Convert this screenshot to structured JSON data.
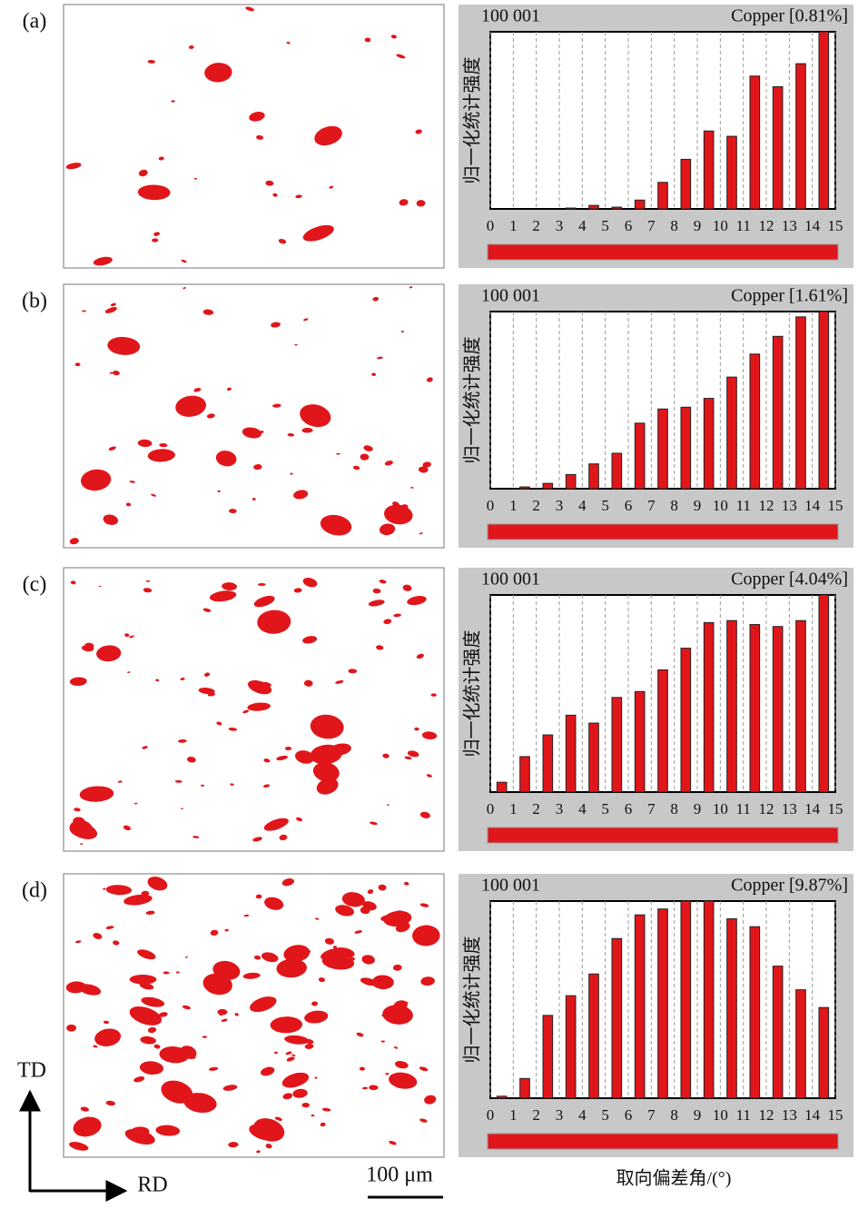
{
  "figure": {
    "panels": [
      "(a)",
      "(b)",
      "(c)",
      "(d)"
    ],
    "td": "TD",
    "rd": "RD",
    "scale_bar": "100 μm",
    "x_label": "取向偏差角/(°)"
  },
  "chart_data": [
    {
      "type": "histogram",
      "subtitle": "100 001",
      "title": "Copper [0.81%]",
      "y_label": "归一化统计强度",
      "bins": [
        0,
        1,
        2,
        3,
        4,
        5,
        6,
        7,
        8,
        9,
        10,
        11,
        12,
        13,
        14,
        15
      ],
      "values": [
        0,
        0,
        0,
        0.005,
        0.02,
        0.01,
        0.05,
        0.15,
        0.28,
        0.44,
        0.41,
        0.75,
        0.69,
        0.82,
        1.0
      ],
      "color": "#e0161b",
      "xlim": [
        0,
        15
      ],
      "ylim": [
        0,
        1
      ],
      "xticks": [
        0,
        1,
        2,
        3,
        4,
        5,
        6,
        7,
        8,
        9,
        10,
        11,
        12,
        13,
        14,
        15
      ],
      "grid": true
    },
    {
      "type": "histogram",
      "subtitle": "100 001",
      "title": "Copper [1.61%]",
      "y_label": "归一化统计强度",
      "bins": [
        0,
        1,
        2,
        3,
        4,
        5,
        6,
        7,
        8,
        9,
        10,
        11,
        12,
        13,
        14,
        15
      ],
      "values": [
        0,
        0.01,
        0.03,
        0.08,
        0.14,
        0.2,
        0.37,
        0.45,
        0.46,
        0.51,
        0.63,
        0.76,
        0.86,
        0.97,
        1.0
      ],
      "color": "#e0161b",
      "xlim": [
        0,
        15
      ],
      "ylim": [
        0,
        1
      ],
      "xticks": [
        0,
        1,
        2,
        3,
        4,
        5,
        6,
        7,
        8,
        9,
        10,
        11,
        12,
        13,
        14,
        15
      ],
      "grid": true
    },
    {
      "type": "histogram",
      "subtitle": "100 001",
      "title": "Copper [4.04%]",
      "y_label": "归一化统计强度",
      "bins": [
        0,
        1,
        2,
        3,
        4,
        5,
        6,
        7,
        8,
        9,
        10,
        11,
        12,
        13,
        14,
        15
      ],
      "values": [
        0.05,
        0.18,
        0.29,
        0.39,
        0.35,
        0.48,
        0.51,
        0.62,
        0.73,
        0.86,
        0.87,
        0.85,
        0.84,
        0.87,
        1.0
      ],
      "color": "#e0161b",
      "xlim": [
        0,
        15
      ],
      "ylim": [
        0,
        1
      ],
      "xticks": [
        0,
        1,
        2,
        3,
        4,
        5,
        6,
        7,
        8,
        9,
        10,
        11,
        12,
        13,
        14,
        15
      ],
      "grid": true
    },
    {
      "type": "histogram",
      "subtitle": "100 001",
      "title": "Copper [9.87%]",
      "y_label": "归一化统计强度",
      "bins": [
        0,
        1,
        2,
        3,
        4,
        5,
        6,
        7,
        8,
        9,
        10,
        11,
        12,
        13,
        14,
        15
      ],
      "values": [
        0.01,
        0.1,
        0.42,
        0.52,
        0.63,
        0.81,
        0.93,
        0.96,
        1.0,
        1.0,
        0.91,
        0.87,
        0.67,
        0.55,
        0.46
      ],
      "color": "#e0161b",
      "xlim": [
        0,
        15
      ],
      "ylim": [
        0,
        1
      ],
      "xticks": [
        0,
        1,
        2,
        3,
        4,
        5,
        6,
        7,
        8,
        9,
        10,
        11,
        12,
        13,
        14,
        15
      ],
      "grid": true
    }
  ]
}
